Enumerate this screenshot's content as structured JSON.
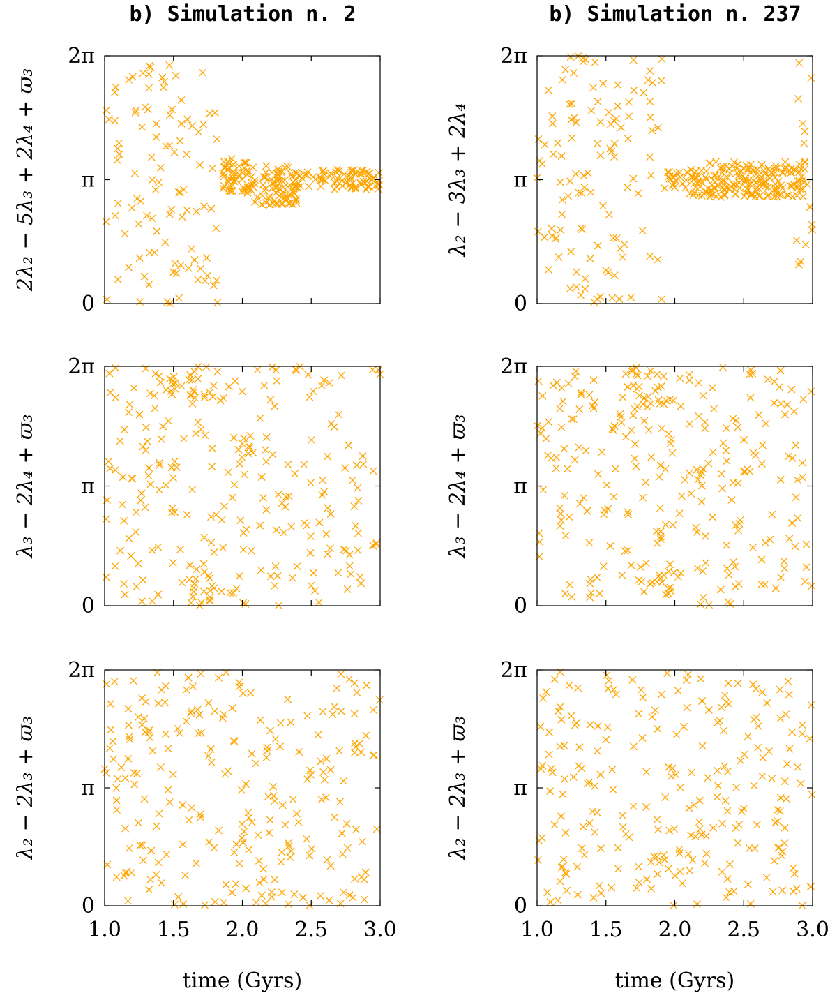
{
  "chart_data": [
    {
      "type": "scatter",
      "column_title": "b) Simulation n. 2",
      "ylabel": "2λ₂ − 5λ₃ + 2λ₄ + ϖ₃",
      "xlabel": "",
      "xlim": [
        1.0,
        3.0
      ],
      "ylim": [
        0,
        6.2832
      ],
      "yticks": [
        "0",
        "π",
        "2π"
      ],
      "xticks": [],
      "marker": "x",
      "color": "#ffa500",
      "regions": [
        {
          "x": [
            1.0,
            1.82
          ],
          "y": [
            0,
            6.2832
          ],
          "mode": "circulating"
        },
        {
          "x": [
            1.82,
            2.08
          ],
          "y": [
            2.8,
            3.7
          ],
          "mode": "libration"
        },
        {
          "x": [
            2.08,
            2.4
          ],
          "y": [
            2.5,
            3.5
          ],
          "mode": "libration"
        },
        {
          "x": [
            2.4,
            3.0
          ],
          "y": [
            2.88,
            3.4
          ],
          "mode": "libration"
        }
      ]
    },
    {
      "type": "scatter",
      "column_title": "b) Simulation n. 237",
      "ylabel": "λ₂ − 3λ₃ + 2λ₄",
      "xlabel": "",
      "xlim": [
        1.0,
        3.0
      ],
      "ylim": [
        0,
        6.2832
      ],
      "yticks": [
        "0",
        "π",
        "2π"
      ],
      "xticks": [],
      "marker": "x",
      "color": "#ffa500",
      "regions": [
        {
          "x": [
            1.0,
            1.92
          ],
          "y": [
            0,
            6.2832
          ],
          "mode": "circulating"
        },
        {
          "x": [
            1.92,
            2.1
          ],
          "y": [
            2.9,
            3.35
          ],
          "mode": "libration"
        },
        {
          "x": [
            2.1,
            2.95
          ],
          "y": [
            2.7,
            3.6
          ],
          "mode": "libration"
        },
        {
          "x": [
            2.88,
            3.0
          ],
          "y": [
            0,
            6.2832
          ],
          "mode": "circulating"
        }
      ]
    },
    {
      "type": "scatter",
      "ylabel": "λ₃ − 2λ₄ + ϖ₃",
      "xlabel": "",
      "xlim": [
        1.0,
        3.0
      ],
      "ylim": [
        0,
        6.2832
      ],
      "yticks": [
        "0",
        "π",
        "2π"
      ],
      "xticks": [],
      "marker": "x",
      "color": "#ffa500",
      "regions": [
        {
          "x": [
            1.0,
            3.0
          ],
          "y": [
            0,
            6.2832
          ],
          "mode": "circulating"
        },
        {
          "x": [
            1.6,
            1.8
          ],
          "y": [
            5.2,
            6.2832
          ],
          "mode": "dense"
        },
        {
          "x": [
            1.6,
            1.8
          ],
          "y": [
            0,
            1.1
          ],
          "mode": "dense"
        }
      ]
    },
    {
      "type": "scatter",
      "ylabel": "λ₃ − 2λ₄ + ϖ₃",
      "xlabel": "",
      "xlim": [
        1.0,
        3.0
      ],
      "ylim": [
        0,
        6.2832
      ],
      "yticks": [
        "0",
        "π",
        "2π"
      ],
      "xticks": [],
      "marker": "x",
      "color": "#ffa500",
      "regions": [
        {
          "x": [
            1.0,
            3.0
          ],
          "y": [
            0,
            6.2832
          ],
          "mode": "circulating"
        },
        {
          "x": [
            1.6,
            1.98
          ],
          "y": [
            5.2,
            6.2832
          ],
          "mode": "dense"
        },
        {
          "x": [
            1.75,
            1.98
          ],
          "y": [
            0,
            1.1
          ],
          "mode": "dense"
        }
      ]
    },
    {
      "type": "scatter",
      "ylabel": "λ₂ − 2λ₃ + ϖ₃",
      "xlabel": "time (Gyrs)",
      "xlim": [
        1.0,
        3.0
      ],
      "ylim": [
        0,
        6.2832
      ],
      "yticks": [
        "0",
        "π",
        "2π"
      ],
      "xticks": [
        "1.0",
        "1.5",
        "2.0",
        "2.5",
        "3.0"
      ],
      "marker": "x",
      "color": "#ffa500",
      "regions": [
        {
          "x": [
            1.0,
            3.0
          ],
          "y": [
            0,
            6.2832
          ],
          "mode": "circulating"
        }
      ]
    },
    {
      "type": "scatter",
      "ylabel": "λ₂ − 2λ₃ + ϖ₃",
      "xlabel": "time (Gyrs)",
      "xlim": [
        1.0,
        3.0
      ],
      "ylim": [
        0,
        6.2832
      ],
      "yticks": [
        "0",
        "π",
        "2π"
      ],
      "xticks": [
        "1.0",
        "1.5",
        "2.0",
        "2.5",
        "3.0"
      ],
      "marker": "x",
      "color": "#ffa500",
      "regions": [
        {
          "x": [
            1.0,
            3.0
          ],
          "y": [
            0,
            6.2832
          ],
          "mode": "circulating"
        }
      ]
    }
  ]
}
